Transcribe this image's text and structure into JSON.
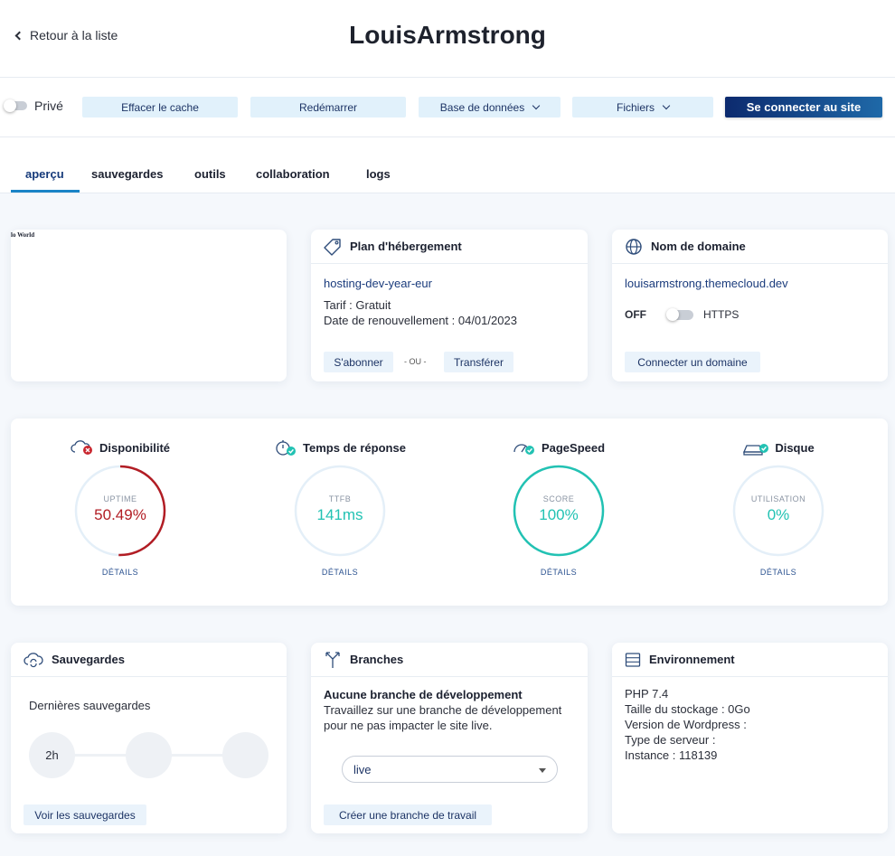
{
  "header": {
    "back_label": "Retour à la liste",
    "title": "LouisArmstrong"
  },
  "toolbar": {
    "private_label": "Privé",
    "clear_cache": "Effacer le cache",
    "restart": "Redémarrer",
    "database": "Base de données",
    "files": "Fichiers",
    "connect_site": "Se connecter au site"
  },
  "tabs": [
    {
      "label": "aperçu",
      "active": true
    },
    {
      "label": "sauvegardes"
    },
    {
      "label": "outils"
    },
    {
      "label": "collaboration"
    },
    {
      "label": "logs"
    }
  ],
  "preview": {
    "site_text": "lo World"
  },
  "hosting": {
    "title": "Plan d'hébergement",
    "plan": "hosting-dev-year-eur",
    "tarif": "Tarif : Gratuit",
    "renewal": "Date de renouvellement : 04/01/2023",
    "subscribe": "S'abonner",
    "or": "- OU -",
    "transfer": "Transférer"
  },
  "domain": {
    "title": "Nom de domaine",
    "domain": "louisarmstrong.themecloud.dev",
    "off": "OFF",
    "https": "HTTPS",
    "connect": "Connecter un domaine"
  },
  "metrics": [
    {
      "title": "Disponibilité",
      "label": "UPTIME",
      "value": "50.49%",
      "fraction": 0.5049,
      "color": "#b21d24",
      "details": "DÉTAILS"
    },
    {
      "title": "Temps de réponse",
      "label": "TTFB",
      "value": "141ms",
      "fraction": 0,
      "color": "#22c2b3",
      "details": "DÉTAILS"
    },
    {
      "title": "PageSpeed",
      "label": "SCORE",
      "value": "100%",
      "fraction": 1,
      "color": "#22c2b3",
      "details": "DÉTAILS"
    },
    {
      "title": "Disque",
      "label": "UTILISATION",
      "value": "0%",
      "fraction": 0,
      "color": "#22c2b3",
      "details": "DÉTAILS"
    }
  ],
  "backups": {
    "title": "Sauvegardes",
    "subtitle": "Dernières sauvegardes",
    "first": "2h",
    "view": "Voir les sauvegardes"
  },
  "branches": {
    "title": "Branches",
    "empty_title": "Aucune branche de développement",
    "empty_text": "Travaillez sur une branche de développement pour ne pas impacter le site live.",
    "selected": "live",
    "create": "Créer une branche de travail"
  },
  "environment": {
    "title": "Environnement",
    "lines": [
      "PHP 7.4",
      "Taille du stockage : 0Go",
      "Version de Wordpress :",
      "Type de serveur :",
      "Instance : 118139"
    ]
  }
}
